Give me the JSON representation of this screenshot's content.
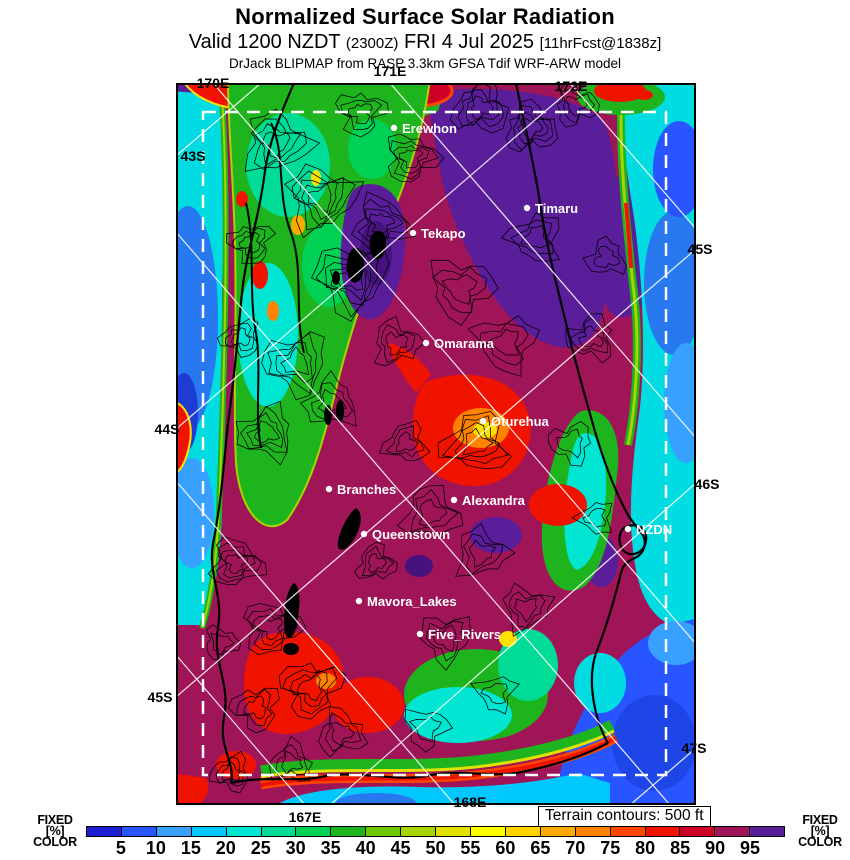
{
  "header": {
    "title": "Normalized Surface Solar Radiation",
    "valid_prefix": "Valid 1200 NZDT",
    "valid_zulu": "(2300Z)",
    "valid_date": "FRI 4 Jul 2025",
    "forecast_tag": "[11hrFcst@1838z]",
    "model_line": "DrJack BLIPMAP from RASP 3.3km GFSA Tdif WRF-ARW model"
  },
  "map": {
    "terrain_note": "Terrain contours: 500 ft",
    "places": [
      {
        "name": "Erewhon"
      },
      {
        "name": "Timaru"
      },
      {
        "name": "Tekapo"
      },
      {
        "name": "Omarama"
      },
      {
        "name": "Oturehua"
      },
      {
        "name": "Branches"
      },
      {
        "name": "Alexandra"
      },
      {
        "name": "Queenstown"
      },
      {
        "name": "NZDN"
      },
      {
        "name": "Mavora_Lakes"
      },
      {
        "name": "Five_Rivers"
      }
    ],
    "grid_labels": [
      {
        "text": "170E"
      },
      {
        "text": "171E"
      },
      {
        "text": "172E"
      },
      {
        "text": "43S"
      },
      {
        "text": "44S"
      },
      {
        "text": "45S"
      },
      {
        "text": "45S"
      },
      {
        "text": "46S"
      },
      {
        "text": "47S"
      },
      {
        "text": "168E"
      },
      {
        "text": "167E"
      }
    ]
  },
  "colorbar": {
    "side_label_lines": [
      "FIXED",
      "[%]",
      "COLOR"
    ],
    "unit": "%",
    "ticks": [
      5,
      10,
      15,
      20,
      25,
      30,
      35,
      40,
      45,
      50,
      55,
      60,
      65,
      70,
      75,
      80,
      85,
      90,
      95
    ],
    "segment_colors": [
      "#1e1ed2",
      "#2855ff",
      "#38a0ff",
      "#00c8ff",
      "#00e6d2",
      "#00dc96",
      "#00d155",
      "#1eb41e",
      "#6ec800",
      "#a8d400",
      "#e1e100",
      "#ffff00",
      "#ffd200",
      "#ffaa00",
      "#ff8200",
      "#ff4600",
      "#f01400",
      "#cd0028",
      "#a01458",
      "#5a1e9b"
    ]
  }
}
